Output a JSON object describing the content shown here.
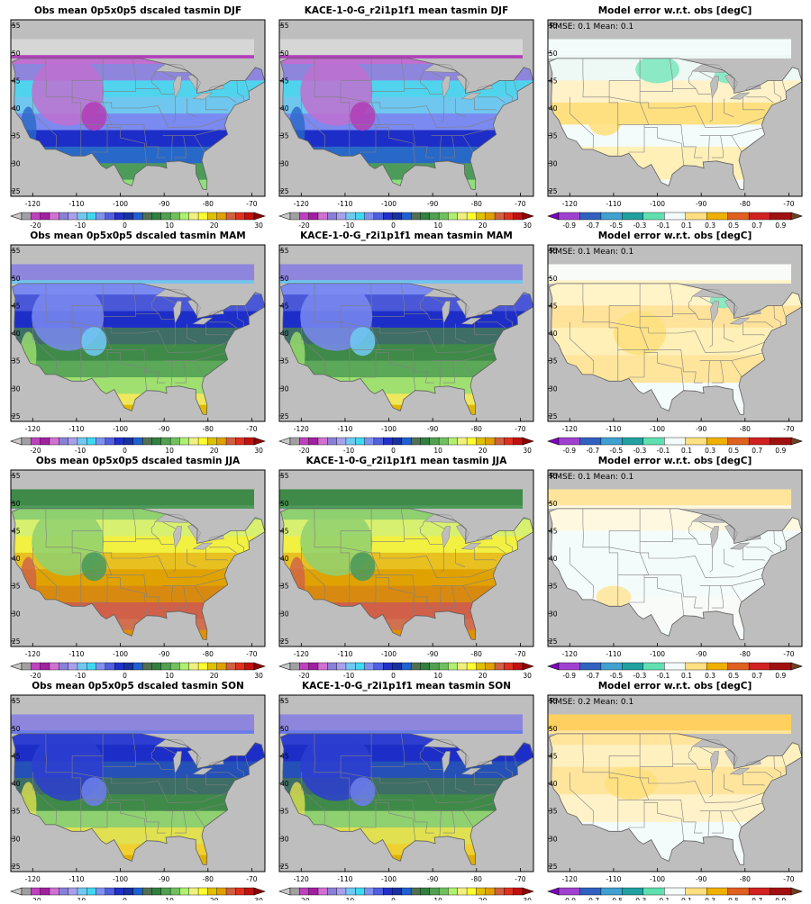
{
  "panels": [
    {
      "title": "Obs mean 0p5x0p5 dscaled tasmin DJF",
      "kind": "mean",
      "season": "DJF",
      "stats": ""
    },
    {
      "title": "KACE-1-0-G_r2i1p1f1 mean tasmin DJF",
      "kind": "mean",
      "season": "DJF",
      "stats": ""
    },
    {
      "title": "Model error w.r.t. obs [degC]",
      "kind": "error",
      "season": "DJF",
      "stats": "RMSE: 0.1   Mean: 0.1"
    },
    {
      "title": "Obs mean 0p5x0p5 dscaled tasmin MAM",
      "kind": "mean",
      "season": "MAM",
      "stats": ""
    },
    {
      "title": "KACE-1-0-G_r2i1p1f1 mean tasmin MAM",
      "kind": "mean",
      "season": "MAM",
      "stats": ""
    },
    {
      "title": "Model error w.r.t. obs [degC]",
      "kind": "error",
      "season": "MAM",
      "stats": "RMSE: 0.1   Mean: 0.1"
    },
    {
      "title": "Obs mean 0p5x0p5 dscaled tasmin JJA",
      "kind": "mean",
      "season": "JJA",
      "stats": ""
    },
    {
      "title": "KACE-1-0-G_r2i1p1f1 mean tasmin JJA",
      "kind": "mean",
      "season": "JJA",
      "stats": ""
    },
    {
      "title": "Model error w.r.t. obs [degC]",
      "kind": "error",
      "season": "JJA",
      "stats": "RMSE: 0.1   Mean: 0.1"
    },
    {
      "title": "Obs mean 0p5x0p5 dscaled tasmin SON",
      "kind": "mean",
      "season": "SON",
      "stats": ""
    },
    {
      "title": "KACE-1-0-G_r2i1p1f1 mean tasmin SON",
      "kind": "mean",
      "season": "SON",
      "stats": ""
    },
    {
      "title": "Model error w.r.t. obs [degC]",
      "kind": "error",
      "season": "SON",
      "stats": "RMSE: 0.2   Mean: 0.1"
    }
  ],
  "axes": {
    "lon_ticks": [
      "-120",
      "-110",
      "-100",
      "-90",
      "-80",
      "-70"
    ],
    "lat_ticks": [
      "55",
      "50",
      "45",
      "40",
      "35",
      "30",
      "25"
    ],
    "lon_range": [
      -125,
      -67
    ],
    "lat_range": [
      24,
      56
    ]
  },
  "colorbars": {
    "mean": {
      "labels": [
        "-20",
        "-10",
        "0",
        "10",
        "20",
        "30"
      ],
      "colors": [
        "#c9c9c9",
        "#a0a0a0",
        "#c040c0",
        "#a020a0",
        "#d070d0",
        "#8a80d8",
        "#a8a0ec",
        "#70c8f0",
        "#40d8f0",
        "#8090f0",
        "#5060e0",
        "#2030c8",
        "#1830a0",
        "#2060d0",
        "#507050",
        "#308040",
        "#50a050",
        "#70c060",
        "#b0f070",
        "#f0f080",
        "#ffff30",
        "#e0c000",
        "#e0a000",
        "#d06040",
        "#e03020",
        "#c01010",
        "#900000"
      ]
    },
    "error": {
      "labels": [
        "-0.9",
        "-0.7",
        "-0.5",
        "-0.3",
        "-0.1",
        "0.1",
        "0.3",
        "0.5",
        "0.7",
        "0.9"
      ],
      "colors": [
        "#8000c0",
        "#a040d0",
        "#3060c0",
        "#40a0d0",
        "#20a0a0",
        "#60e0b0",
        "#f4fbfb",
        "#ffe080",
        "#f0b000",
        "#e06020",
        "#d02020",
        "#a01010",
        "#704020"
      ]
    }
  },
  "palette": {
    "land_background": "#bebebe",
    "border_color": "#808080",
    "error_neutral": "#f4fbfb",
    "error_warm": "#ffe080",
    "error_cool": "#80e8c0"
  }
}
